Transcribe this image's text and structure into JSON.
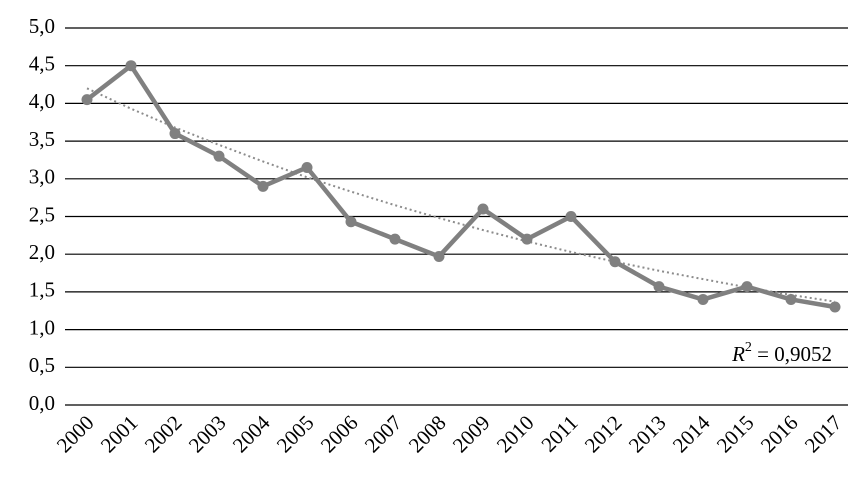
{
  "chart_data": {
    "type": "line",
    "categories": [
      "2000",
      "2001",
      "2002",
      "2003",
      "2004",
      "2005",
      "2006",
      "2007",
      "2008",
      "2009",
      "2010",
      "2011",
      "2012",
      "2013",
      "2014",
      "2015",
      "2016",
      "2017"
    ],
    "series": [
      {
        "color": "#808080",
        "values": [
          4.05,
          4.5,
          3.6,
          3.3,
          2.9,
          3.15,
          2.43,
          2.2,
          1.97,
          2.6,
          2.2,
          2.5,
          1.9,
          1.57,
          1.4,
          1.57,
          1.4,
          1.3
        ]
      }
    ],
    "trendline": {
      "color": "#8c8c8c",
      "values": [
        4.2,
        3.93,
        3.68,
        3.45,
        3.23,
        3.02,
        2.83,
        2.65,
        2.48,
        2.32,
        2.17,
        2.03,
        1.9,
        1.78,
        1.67,
        1.56,
        1.46,
        1.37
      ]
    },
    "annotation": {
      "symbol": "R",
      "power": "2",
      "text": " = 0,9052"
    },
    "ylim": [
      0,
      5
    ],
    "yticks": [
      {
        "value": 0,
        "label": "0,0"
      },
      {
        "value": 0.5,
        "label": "0,5"
      },
      {
        "value": 1,
        "label": "1,0"
      },
      {
        "value": 1.5,
        "label": "1,5"
      },
      {
        "value": 2,
        "label": "2,0"
      },
      {
        "value": 2.5,
        "label": "2,5"
      },
      {
        "value": 3,
        "label": "3,0"
      },
      {
        "value": 3.5,
        "label": "3,5"
      },
      {
        "value": 4,
        "label": "4,0"
      },
      {
        "value": 4.5,
        "label": "4,5"
      },
      {
        "value": 5,
        "label": "5,0"
      }
    ],
    "grid": true
  }
}
